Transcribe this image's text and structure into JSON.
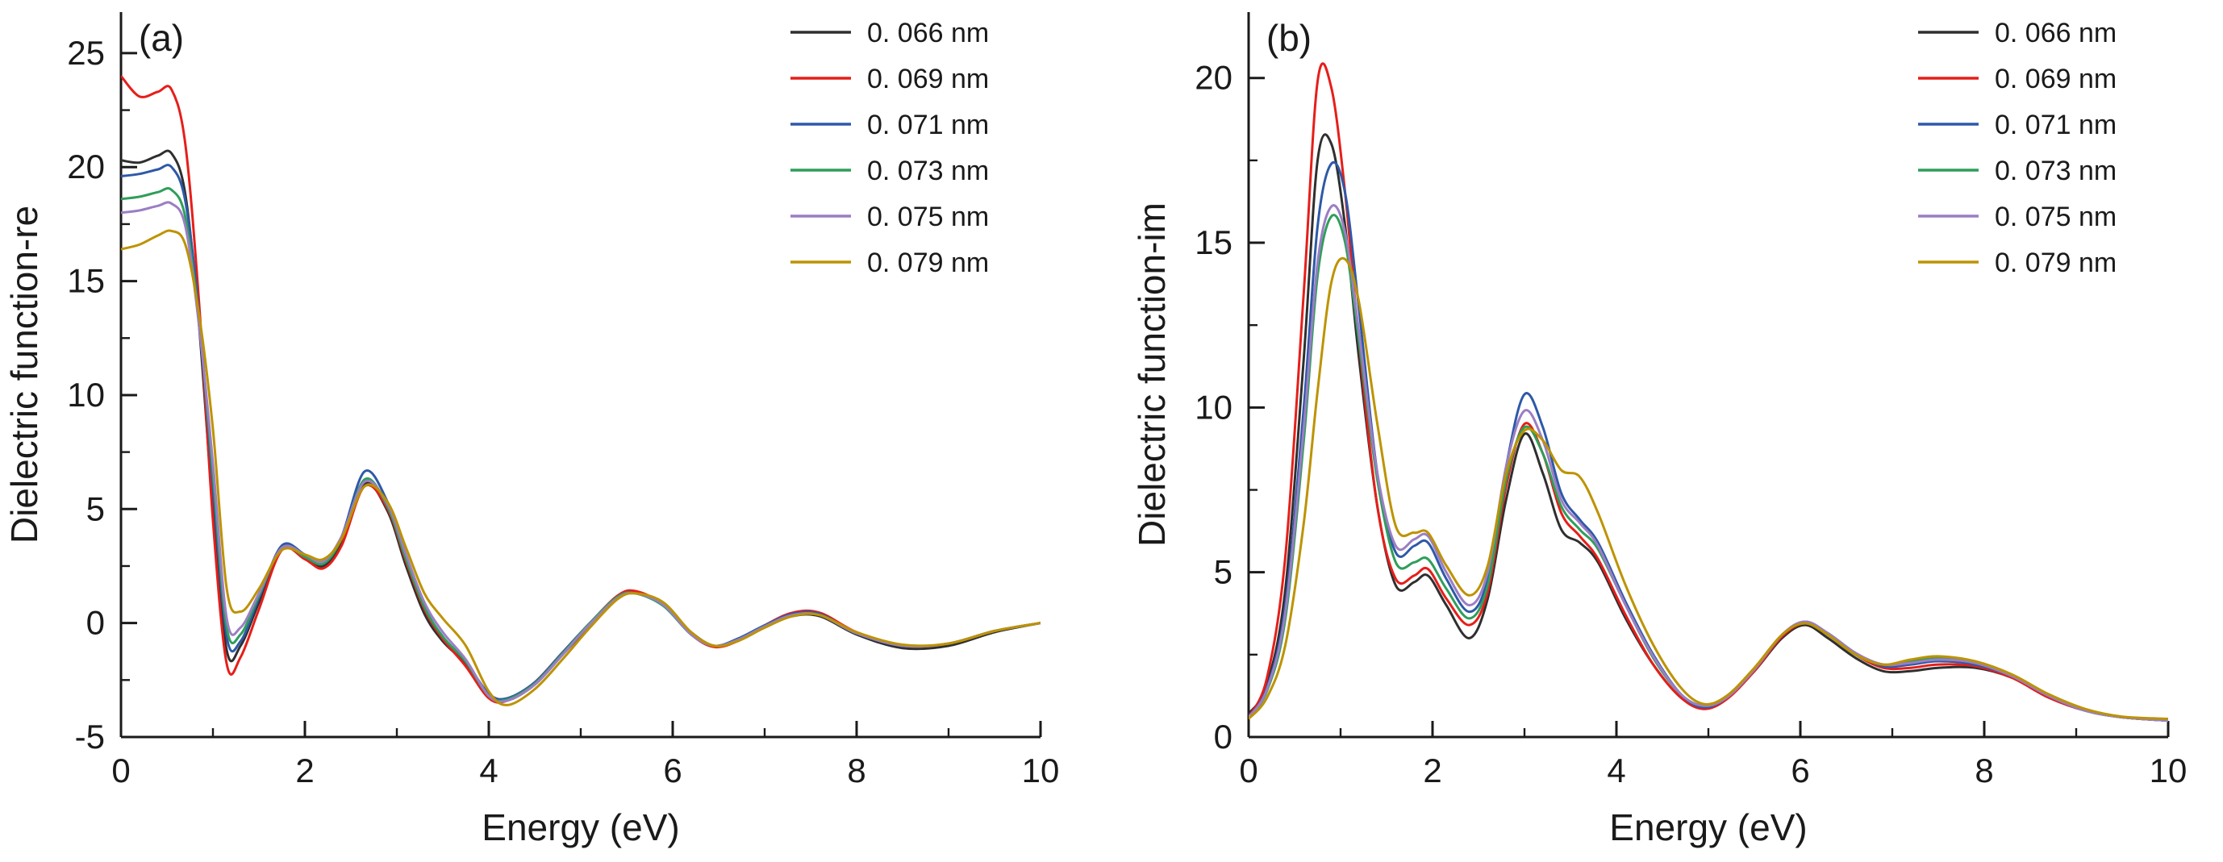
{
  "figure": {
    "background": "#ffffff",
    "text_color": "#1a1a1a",
    "axis_color": "#1a1a1a"
  },
  "chart_data": [
    {
      "type": "line",
      "panel_label": "(a)",
      "xlabel": "Energy (eV)",
      "ylabel": "Dielectric function-re",
      "xlim": [
        0,
        10
      ],
      "ylim": [
        -5,
        26.8
      ],
      "xticks": [
        0,
        2,
        4,
        6,
        8,
        10
      ],
      "yticks": [
        -5,
        0,
        5,
        10,
        15,
        20,
        25
      ],
      "grid": false,
      "legend_position": "top-right",
      "x": [
        0,
        0.2,
        0.4,
        0.55,
        0.7,
        0.85,
        1.0,
        1.15,
        1.3,
        1.5,
        1.75,
        2.0,
        2.2,
        2.4,
        2.65,
        2.9,
        3.1,
        3.3,
        3.5,
        3.75,
        4.0,
        4.2,
        4.5,
        4.8,
        5.1,
        5.4,
        5.6,
        5.9,
        6.2,
        6.45,
        6.7,
        7.0,
        7.3,
        7.6,
        8.0,
        8.5,
        9.0,
        9.5,
        10
      ],
      "series": [
        {
          "name": "0. 066 nm",
          "color": "#2f2f2f",
          "values": [
            20.3,
            20.2,
            20.5,
            20.6,
            18.8,
            13.0,
            5.0,
            -1.2,
            -1.0,
            0.9,
            3.3,
            2.9,
            2.5,
            3.5,
            6.1,
            4.9,
            2.5,
            0.4,
            -0.8,
            -1.8,
            -3.2,
            -3.4,
            -2.7,
            -1.4,
            -0.1,
            1.1,
            1.35,
            0.8,
            -0.4,
            -1.0,
            -0.8,
            -0.2,
            0.3,
            0.3,
            -0.5,
            -1.1,
            -1.0,
            -0.4,
            0.0
          ]
        },
        {
          "name": "0. 069 nm",
          "color": "#e61e19",
          "values": [
            24.0,
            23.1,
            23.3,
            23.4,
            21.0,
            14.0,
            4.5,
            -1.8,
            -1.5,
            0.6,
            3.2,
            2.8,
            2.4,
            3.4,
            6.0,
            5.0,
            2.7,
            0.6,
            -0.7,
            -1.9,
            -3.3,
            -3.4,
            -2.6,
            -1.3,
            0.0,
            1.2,
            1.4,
            0.8,
            -0.5,
            -1.05,
            -0.8,
            -0.1,
            0.45,
            0.45,
            -0.4,
            -1.0,
            -0.9,
            -0.35,
            0.0
          ]
        },
        {
          "name": "0. 071 nm",
          "color": "#2e59a8",
          "values": [
            19.6,
            19.7,
            19.9,
            20.0,
            18.5,
            13.5,
            6.0,
            -0.6,
            -0.8,
            1.1,
            3.4,
            3.0,
            2.6,
            3.8,
            6.65,
            5.3,
            2.9,
            0.7,
            -0.6,
            -1.7,
            -3.1,
            -3.3,
            -2.6,
            -1.3,
            0.0,
            1.15,
            1.3,
            0.75,
            -0.5,
            -1.0,
            -0.7,
            -0.1,
            0.4,
            0.4,
            -0.45,
            -1.0,
            -0.9,
            -0.35,
            0.0
          ]
        },
        {
          "name": "0. 073 nm",
          "color": "#2f9e5a",
          "values": [
            18.6,
            18.7,
            18.9,
            19.0,
            17.8,
            13.2,
            6.5,
            -0.2,
            -0.5,
            1.2,
            3.3,
            2.9,
            2.6,
            3.7,
            6.3,
            5.1,
            2.8,
            0.7,
            -0.6,
            -1.7,
            -3.2,
            -3.35,
            -2.65,
            -1.35,
            0.0,
            1.15,
            1.3,
            0.75,
            -0.5,
            -1.0,
            -0.75,
            -0.15,
            0.35,
            0.35,
            -0.45,
            -1.0,
            -0.9,
            -0.35,
            0.0
          ]
        },
        {
          "name": "0. 075 nm",
          "color": "#9b7ec4",
          "values": [
            18.0,
            18.1,
            18.3,
            18.4,
            17.4,
            13.0,
            7.0,
            0.2,
            -0.2,
            1.3,
            3.3,
            3.0,
            2.7,
            3.8,
            6.2,
            5.2,
            3.0,
            0.9,
            -0.4,
            -1.6,
            -3.2,
            -3.4,
            -2.7,
            -1.4,
            -0.05,
            1.1,
            1.3,
            0.8,
            -0.5,
            -1.0,
            -0.75,
            -0.15,
            0.35,
            0.35,
            -0.45,
            -1.0,
            -0.9,
            -0.35,
            0.0
          ]
        },
        {
          "name": "0. 079 nm",
          "color": "#bd9300",
          "values": [
            16.4,
            16.6,
            17.0,
            17.2,
            16.6,
            13.5,
            8.5,
            1.5,
            0.5,
            1.5,
            3.2,
            3.0,
            2.8,
            3.7,
            6.0,
            5.3,
            3.3,
            1.3,
            0.2,
            -1.0,
            -3.0,
            -3.6,
            -2.9,
            -1.6,
            -0.2,
            1.05,
            1.3,
            0.9,
            -0.4,
            -1.0,
            -0.8,
            -0.2,
            0.3,
            0.35,
            -0.4,
            -0.95,
            -0.9,
            -0.35,
            0.0
          ]
        }
      ]
    },
    {
      "type": "line",
      "panel_label": "(b)",
      "xlabel": "Energy (eV)",
      "ylabel": "Dielectric function-im",
      "xlim": [
        0,
        10
      ],
      "ylim": [
        0,
        22
      ],
      "xticks": [
        0,
        2,
        4,
        6,
        8,
        10
      ],
      "yticks": [
        0,
        5,
        10,
        15,
        20
      ],
      "grid": false,
      "legend_position": "top-right",
      "x": [
        0,
        0.2,
        0.4,
        0.6,
        0.75,
        0.9,
        1.05,
        1.2,
        1.4,
        1.6,
        1.8,
        1.95,
        2.15,
        2.4,
        2.6,
        2.8,
        3.0,
        3.2,
        3.4,
        3.6,
        3.8,
        4.1,
        4.4,
        4.7,
        4.95,
        5.2,
        5.5,
        5.8,
        6.05,
        6.3,
        6.6,
        6.9,
        7.2,
        7.5,
        7.9,
        8.3,
        8.7,
        9.1,
        9.5,
        10
      ],
      "series": [
        {
          "name": "0. 066 nm",
          "color": "#2f2f2f",
          "values": [
            0.7,
            1.6,
            4.5,
            11.5,
            17.5,
            18.0,
            15.5,
            11.5,
            7.0,
            4.6,
            4.7,
            4.9,
            4.0,
            3.0,
            4.2,
            7.2,
            9.2,
            8.0,
            6.3,
            5.9,
            5.3,
            3.6,
            2.2,
            1.2,
            0.9,
            1.2,
            2.0,
            3.0,
            3.4,
            3.0,
            2.4,
            2.0,
            2.0,
            2.1,
            2.1,
            1.8,
            1.2,
            0.8,
            0.6,
            0.5
          ]
        },
        {
          "name": "0. 069 nm",
          "color": "#e61e19",
          "values": [
            0.6,
            1.8,
            5.5,
            13.5,
            19.9,
            19.7,
            16.5,
            12.0,
            7.0,
            4.8,
            4.9,
            5.1,
            4.2,
            3.4,
            4.4,
            7.6,
            9.5,
            8.6,
            6.8,
            6.1,
            5.4,
            3.7,
            2.2,
            1.2,
            0.85,
            1.15,
            2.0,
            3.05,
            3.45,
            3.1,
            2.5,
            2.1,
            2.1,
            2.2,
            2.15,
            1.8,
            1.2,
            0.8,
            0.6,
            0.5
          ]
        },
        {
          "name": "0. 071 nm",
          "color": "#2e59a8",
          "values": [
            0.6,
            1.5,
            4.0,
            10.0,
            15.5,
            17.4,
            16.5,
            13.0,
            8.0,
            5.6,
            5.8,
            5.9,
            4.8,
            3.8,
            4.8,
            8.2,
            10.4,
            9.4,
            7.4,
            6.6,
            5.9,
            4.1,
            2.5,
            1.3,
            0.9,
            1.2,
            2.05,
            3.1,
            3.5,
            3.15,
            2.55,
            2.15,
            2.2,
            2.3,
            2.2,
            1.85,
            1.25,
            0.8,
            0.6,
            0.5
          ]
        },
        {
          "name": "0. 073 nm",
          "color": "#2f9e5a",
          "values": [
            0.6,
            1.4,
            3.6,
            9.0,
            14.0,
            15.8,
            15.0,
            12.0,
            7.8,
            5.3,
            5.3,
            5.4,
            4.5,
            3.6,
            4.6,
            7.8,
            9.4,
            8.6,
            7.0,
            6.3,
            5.7,
            4.0,
            2.4,
            1.3,
            0.95,
            1.2,
            2.05,
            3.1,
            3.45,
            3.1,
            2.5,
            2.2,
            2.3,
            2.4,
            2.25,
            1.85,
            1.25,
            0.8,
            0.6,
            0.5
          ]
        },
        {
          "name": "0. 075 nm",
          "color": "#9b7ec4",
          "values": [
            0.6,
            1.45,
            3.8,
            9.4,
            14.4,
            16.1,
            15.3,
            12.3,
            8.0,
            5.8,
            6.0,
            6.1,
            5.0,
            4.0,
            5.0,
            8.2,
            9.9,
            9.0,
            7.2,
            6.5,
            5.8,
            4.0,
            2.45,
            1.3,
            0.95,
            1.2,
            2.05,
            3.1,
            3.5,
            3.15,
            2.55,
            2.2,
            2.25,
            2.35,
            2.25,
            1.85,
            1.25,
            0.8,
            0.6,
            0.5
          ]
        },
        {
          "name": "0. 079 nm",
          "color": "#bd9300",
          "values": [
            0.55,
            1.2,
            2.8,
            6.5,
            10.5,
            13.8,
            14.5,
            13.2,
            9.5,
            6.4,
            6.2,
            6.2,
            5.2,
            4.3,
            5.2,
            8.0,
            9.3,
            9.0,
            8.1,
            7.9,
            6.8,
            4.6,
            2.8,
            1.5,
            1.0,
            1.25,
            2.1,
            3.1,
            3.45,
            3.1,
            2.5,
            2.2,
            2.35,
            2.45,
            2.3,
            1.9,
            1.3,
            0.85,
            0.62,
            0.55
          ]
        }
      ]
    }
  ]
}
